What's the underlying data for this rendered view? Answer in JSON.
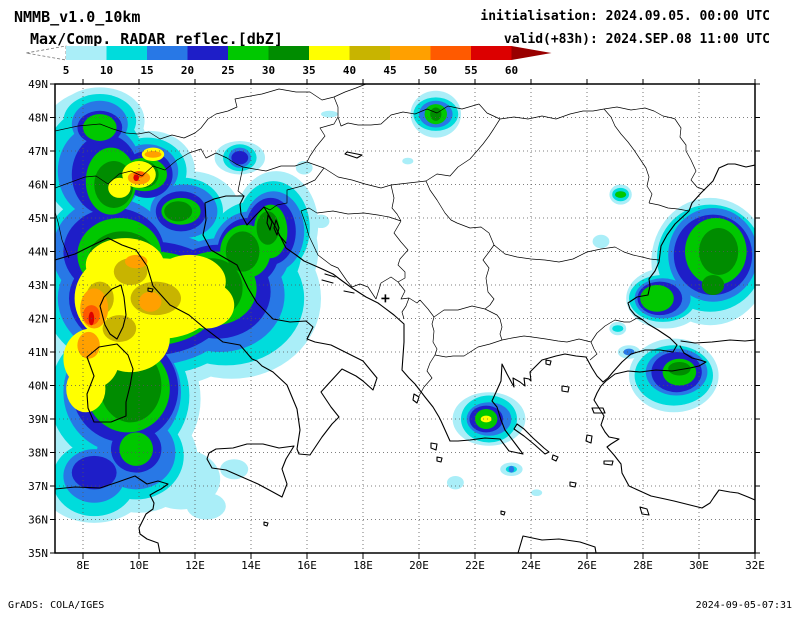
{
  "header": {
    "model_title": "NMMB_v1.0_10km",
    "initialisation": "initialisation: 2024.09.05. 00:00 UTC",
    "variable": "Max/Comp. RADAR reflec.[dbZ]",
    "valid": "valid(+83h): 2024.SEP.08 11:00 UTC"
  },
  "colorbar": {
    "tick_labels": [
      "5",
      "10",
      "15",
      "20",
      "25",
      "30",
      "35",
      "40",
      "45",
      "50",
      "55",
      "60"
    ],
    "below_color": "#ffffff",
    "above_color": "#990000",
    "segment_colors": [
      "#aaeef8",
      "#00dcdc",
      "#2878e6",
      "#1e1ec8",
      "#00c800",
      "#008c00",
      "#ffff00",
      "#c8b400",
      "#ffa000",
      "#ff5a00",
      "#dc0000"
    ]
  },
  "axes": {
    "extent": {
      "lon_min": 7,
      "lon_max": 32,
      "lat_min": 35,
      "lat_max": 49
    },
    "lat_labels": [
      "49N",
      "48N",
      "47N",
      "46N",
      "45N",
      "44N",
      "43N",
      "42N",
      "41N",
      "40N",
      "39N",
      "38N",
      "37N",
      "36N",
      "35N"
    ],
    "lon_labels": [
      "8E",
      "10E",
      "12E",
      "14E",
      "16E",
      "18E",
      "20E",
      "22E",
      "24E",
      "26E",
      "28E",
      "30E",
      "32E"
    ]
  },
  "marker": {
    "symbol": "+",
    "lon": 18.8,
    "lat": 42.6
  },
  "footer": {
    "credit": "GrADS: COLA/IGES",
    "timestamp": "2024-09-05-07:31"
  },
  "chart_data": {
    "type": "heatmap",
    "title": "Max/Comp. RADAR reflec.[dbZ]",
    "units": "dbZ",
    "levels": [
      5,
      10,
      15,
      20,
      25,
      30,
      35,
      40,
      45,
      50,
      55,
      60
    ],
    "note": "blob ellipses are [lon_center, lat_center, lon_radius_deg, lat_radius_deg] for each reflectivity threshold",
    "blobs": [
      {
        "dbz": 5,
        "ellipses": [
          [
            8.3,
            46.7,
            2.1,
            2.1
          ],
          [
            9.0,
            44.0,
            2.9,
            2.1
          ],
          [
            10.4,
            42.6,
            4.3,
            2.7
          ],
          [
            9.3,
            39.6,
            2.9,
            2.4
          ],
          [
            10.0,
            37.8,
            2.1,
            1.6
          ],
          [
            13.3,
            42.6,
            3.2,
            2.4
          ],
          [
            14.3,
            44.0,
            2.1,
            1.8
          ],
          [
            8.6,
            47.9,
            1.6,
            1.0
          ],
          [
            10.4,
            46.4,
            1.6,
            1.2
          ],
          [
            11.8,
            45.2,
            1.8,
            1.2
          ],
          [
            8.4,
            37.2,
            2.0,
            1.3
          ],
          [
            11.5,
            37.2,
            1.4,
            0.9
          ],
          [
            12.4,
            36.4,
            0.7,
            0.4
          ],
          [
            13.4,
            37.5,
            0.5,
            0.3
          ],
          [
            14.9,
            44.8,
            1.5,
            1.6
          ],
          [
            16.5,
            44.9,
            0.3,
            0.2
          ],
          [
            13.6,
            46.8,
            0.9,
            0.5
          ],
          [
            15.9,
            46.5,
            0.3,
            0.2
          ],
          [
            20.6,
            48.1,
            0.9,
            0.7
          ],
          [
            19.6,
            46.7,
            0.2,
            0.1
          ],
          [
            16.8,
            48.1,
            0.3,
            0.1
          ],
          [
            30.4,
            43.7,
            2.1,
            1.9
          ],
          [
            28.8,
            42.6,
            1.4,
            0.9
          ],
          [
            27.2,
            45.7,
            0.4,
            0.3
          ],
          [
            29.1,
            40.3,
            1.6,
            1.1
          ],
          [
            27.5,
            41.0,
            0.4,
            0.2
          ],
          [
            22.5,
            39.0,
            1.3,
            0.8
          ],
          [
            23.3,
            37.5,
            0.4,
            0.2
          ],
          [
            24.2,
            36.8,
            0.2,
            0.1
          ],
          [
            21.3,
            37.1,
            0.3,
            0.2
          ],
          [
            27.1,
            41.7,
            0.3,
            0.2
          ],
          [
            26.5,
            44.3,
            0.3,
            0.2
          ]
        ]
      },
      {
        "dbz": 10,
        "ellipses": [
          [
            8.4,
            46.6,
            1.8,
            1.7
          ],
          [
            9.0,
            44.0,
            2.4,
            1.8
          ],
          [
            10.4,
            42.6,
            3.8,
            2.3
          ],
          [
            9.3,
            39.7,
            2.5,
            2.1
          ],
          [
            9.9,
            37.9,
            1.7,
            1.3
          ],
          [
            13.1,
            42.6,
            2.8,
            2.0
          ],
          [
            14.1,
            44.0,
            1.7,
            1.5
          ],
          [
            8.6,
            47.9,
            1.3,
            0.8
          ],
          [
            10.3,
            46.4,
            1.4,
            1.0
          ],
          [
            11.6,
            45.2,
            1.4,
            1.0
          ],
          [
            8.4,
            37.2,
            1.5,
            1.1
          ],
          [
            14.8,
            44.7,
            1.3,
            1.4
          ],
          [
            13.6,
            46.8,
            0.6,
            0.4
          ],
          [
            20.6,
            48.1,
            0.8,
            0.5
          ],
          [
            30.4,
            43.8,
            1.9,
            1.6
          ],
          [
            28.7,
            42.6,
            1.2,
            0.7
          ],
          [
            27.2,
            45.7,
            0.3,
            0.2
          ],
          [
            29.1,
            40.3,
            1.4,
            0.9
          ],
          [
            22.5,
            39.0,
            1.0,
            0.7
          ],
          [
            23.3,
            37.5,
            0.2,
            0.1
          ],
          [
            27.1,
            41.7,
            0.2,
            0.1
          ]
        ]
      },
      {
        "dbz": 15,
        "ellipses": [
          [
            8.6,
            46.4,
            1.5,
            1.4
          ],
          [
            9.0,
            44.0,
            2.1,
            1.6
          ],
          [
            10.4,
            42.6,
            3.3,
            2.0
          ],
          [
            9.4,
            39.8,
            2.1,
            1.8
          ],
          [
            9.9,
            38.0,
            1.4,
            1.1
          ],
          [
            12.9,
            42.7,
            2.3,
            1.7
          ],
          [
            14.0,
            44.0,
            1.4,
            1.2
          ],
          [
            8.6,
            47.8,
            1.0,
            0.7
          ],
          [
            10.3,
            46.4,
            1.1,
            0.8
          ],
          [
            11.6,
            45.2,
            1.2,
            0.8
          ],
          [
            8.4,
            37.3,
            1.1,
            0.8
          ],
          [
            14.8,
            44.6,
            1.1,
            1.2
          ],
          [
            13.6,
            46.8,
            0.4,
            0.3
          ],
          [
            20.6,
            48.1,
            0.6,
            0.4
          ],
          [
            30.5,
            43.9,
            1.6,
            1.4
          ],
          [
            28.7,
            42.6,
            1.0,
            0.6
          ],
          [
            29.2,
            40.4,
            1.1,
            0.7
          ],
          [
            27.5,
            41.0,
            0.2,
            0.1
          ],
          [
            22.5,
            39.0,
            0.8,
            0.5
          ],
          [
            23.3,
            37.5,
            0.1,
            0.1
          ],
          [
            27.2,
            45.7,
            0.2,
            0.1
          ]
        ]
      },
      {
        "dbz": 20,
        "ellipses": [
          [
            8.8,
            46.3,
            1.2,
            1.2
          ],
          [
            9.1,
            44.0,
            1.8,
            1.3
          ],
          [
            10.4,
            42.6,
            2.9,
            1.7
          ],
          [
            9.5,
            39.9,
            1.9,
            1.6
          ],
          [
            9.9,
            38.1,
            0.9,
            0.7
          ],
          [
            12.8,
            42.8,
            1.9,
            1.4
          ],
          [
            13.9,
            44.0,
            1.1,
            1.0
          ],
          [
            8.6,
            47.7,
            0.8,
            0.5
          ],
          [
            10.3,
            46.3,
            0.9,
            0.7
          ],
          [
            11.5,
            45.2,
            0.9,
            0.6
          ],
          [
            8.4,
            37.4,
            0.8,
            0.5
          ],
          [
            14.7,
            44.6,
            0.9,
            1.0
          ],
          [
            13.6,
            46.8,
            0.3,
            0.2
          ],
          [
            30.5,
            43.9,
            1.4,
            1.2
          ],
          [
            28.6,
            42.6,
            0.8,
            0.5
          ],
          [
            29.2,
            40.4,
            0.9,
            0.6
          ],
          [
            22.4,
            39.0,
            0.6,
            0.4
          ]
        ]
      },
      {
        "dbz": 25,
        "ellipses": [
          [
            9.0,
            46.1,
            0.9,
            1.0
          ],
          [
            9.3,
            43.9,
            1.5,
            1.1
          ],
          [
            10.5,
            42.6,
            2.4,
            1.4
          ],
          [
            9.6,
            39.9,
            1.5,
            1.3
          ],
          [
            9.9,
            38.1,
            0.6,
            0.5
          ],
          [
            12.7,
            42.9,
            1.5,
            1.1
          ],
          [
            13.8,
            44.0,
            0.9,
            0.8
          ],
          [
            8.6,
            47.7,
            0.6,
            0.4
          ],
          [
            10.2,
            46.3,
            0.8,
            0.5
          ],
          [
            11.5,
            45.2,
            0.7,
            0.4
          ],
          [
            14.7,
            44.6,
            0.6,
            0.8
          ],
          [
            20.6,
            48.1,
            0.4,
            0.3
          ],
          [
            30.6,
            44.0,
            1.1,
            1.0
          ],
          [
            28.5,
            42.6,
            0.6,
            0.4
          ],
          [
            29.3,
            40.4,
            0.6,
            0.4
          ],
          [
            22.4,
            39.0,
            0.4,
            0.3
          ],
          [
            27.2,
            45.7,
            0.2,
            0.1
          ]
        ]
      },
      {
        "dbz": 30,
        "ellipses": [
          [
            9.1,
            46.0,
            0.7,
            0.7
          ],
          [
            9.4,
            43.8,
            1.2,
            0.8
          ],
          [
            10.6,
            42.6,
            2.0,
            1.2
          ],
          [
            9.7,
            40.0,
            1.1,
            1.1
          ],
          [
            12.6,
            42.9,
            1.1,
            0.9
          ],
          [
            13.7,
            44.0,
            0.6,
            0.6
          ],
          [
            10.2,
            46.3,
            0.5,
            0.4
          ],
          [
            11.4,
            45.2,
            0.5,
            0.3
          ],
          [
            14.6,
            44.7,
            0.4,
            0.5
          ],
          [
            30.7,
            44.0,
            0.7,
            0.7
          ],
          [
            30.5,
            43.0,
            0.4,
            0.3
          ],
          [
            29.3,
            40.5,
            0.4,
            0.2
          ],
          [
            20.6,
            48.1,
            0.2,
            0.2
          ]
        ]
      },
      {
        "dbz": 35,
        "ellipses": [
          [
            9.5,
            43.6,
            1.4,
            0.8
          ],
          [
            10.8,
            42.6,
            2.0,
            1.2
          ],
          [
            9.7,
            41.4,
            1.4,
            1.0
          ],
          [
            9.0,
            42.6,
            1.3,
            1.2
          ],
          [
            11.8,
            43.1,
            1.3,
            0.8
          ],
          [
            12.4,
            42.4,
            1.0,
            0.7
          ],
          [
            8.3,
            40.8,
            1.0,
            0.9
          ],
          [
            8.1,
            39.9,
            0.7,
            0.7
          ],
          [
            10.0,
            46.3,
            0.6,
            0.4
          ],
          [
            9.3,
            45.9,
            0.4,
            0.3
          ],
          [
            10.5,
            46.9,
            0.4,
            0.2
          ],
          [
            22.4,
            39.0,
            0.2,
            0.1
          ]
        ]
      },
      {
        "dbz": 40,
        "ellipses": [
          [
            9.7,
            43.4,
            0.6,
            0.4
          ],
          [
            10.6,
            42.6,
            0.9,
            0.5
          ],
          [
            9.3,
            41.7,
            0.6,
            0.4
          ],
          [
            8.6,
            42.6,
            0.5,
            0.5
          ],
          [
            10.0,
            46.2,
            0.3,
            0.2
          ]
        ]
      },
      {
        "dbz": 45,
        "ellipses": [
          [
            8.4,
            42.3,
            0.5,
            0.6
          ],
          [
            8.2,
            41.2,
            0.4,
            0.4
          ],
          [
            9.9,
            43.7,
            0.4,
            0.2
          ],
          [
            10.4,
            42.5,
            0.4,
            0.3
          ],
          [
            10.0,
            46.2,
            0.4,
            0.2
          ],
          [
            10.5,
            46.9,
            0.3,
            0.1
          ]
        ]
      },
      {
        "dbz": 50,
        "ellipses": [
          [
            8.3,
            42.1,
            0.3,
            0.3
          ],
          [
            10.0,
            46.3,
            0.2,
            0.1
          ]
        ]
      },
      {
        "dbz": 55,
        "ellipses": [
          [
            8.3,
            42.0,
            0.1,
            0.2
          ],
          [
            9.9,
            46.2,
            0.1,
            0.1
          ]
        ]
      }
    ]
  }
}
